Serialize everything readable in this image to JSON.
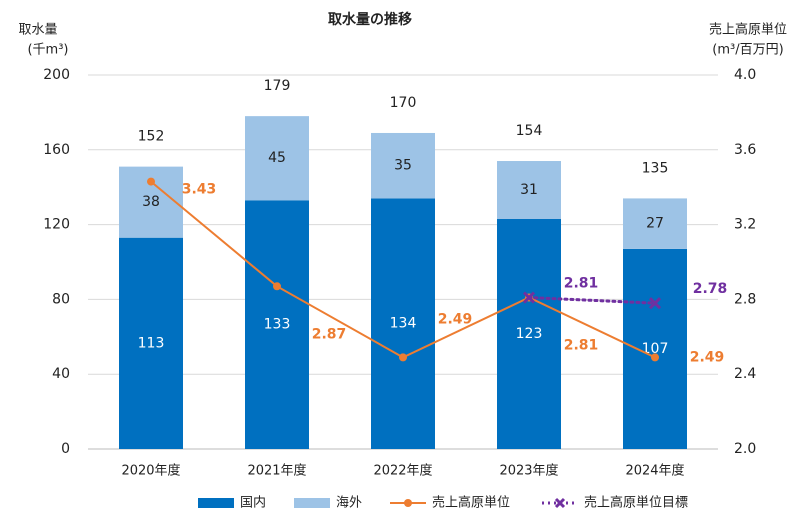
{
  "chart_data": {
    "type": "bar",
    "stacked": true,
    "title": "取水量の推移",
    "y_label": [
      "取水量",
      "(千m³)"
    ],
    "y2_label": [
      "売上高原単位",
      "(m³/百万円)"
    ],
    "categories": [
      "2020年度",
      "2021年度",
      "2022年度",
      "2023年度",
      "2024年度"
    ],
    "totals": [
      152,
      179,
      170,
      154,
      135
    ],
    "series": [
      {
        "name": "国内",
        "type": "bar",
        "color": "#0070c0",
        "values": [
          113,
          133,
          134,
          123,
          107
        ]
      },
      {
        "name": "海外",
        "type": "bar",
        "color": "#9dc3e6",
        "values": [
          38,
          45,
          35,
          31,
          27
        ]
      },
      {
        "name": "売上高原単位",
        "type": "line",
        "axis": "y2",
        "marker": "circle",
        "linestyle": "solid",
        "color": "#ed7d31",
        "values": [
          3.43,
          2.87,
          2.49,
          2.81,
          2.49
        ]
      },
      {
        "name": "売上高原単位目標",
        "type": "line",
        "axis": "y2",
        "marker": "x",
        "linestyle": "dotted",
        "color": "#7030a0",
        "values": [
          null,
          null,
          null,
          2.81,
          2.78
        ]
      }
    ],
    "ylim": [
      0,
      200
    ],
    "yticks": [
      0,
      40,
      80,
      120,
      160,
      200
    ],
    "y2lim": [
      2.0,
      4.0
    ],
    "y2ticks": [
      {
        "value": 2.0,
        "label": "2.0"
      },
      2.4,
      2.8,
      3.2,
      3.6,
      {
        "value": 4.0,
        "label": "4.0"
      }
    ],
    "grid": true,
    "legend": "bottom"
  }
}
